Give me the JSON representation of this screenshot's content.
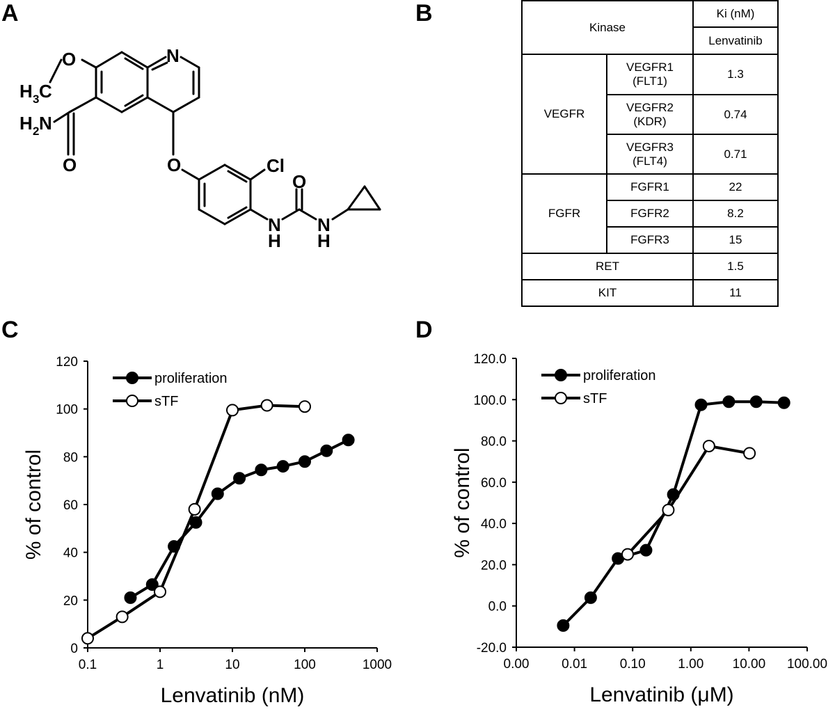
{
  "panels": {
    "a": "A",
    "b": "B",
    "c": "C",
    "d": "D"
  },
  "molecule": {
    "atoms": {
      "methyl_h": "H",
      "methyl_sub": "3",
      "methyl_c": "C",
      "ether_o": "O",
      "ring_n": "N",
      "amide_h": "H",
      "amide_sub": "2",
      "amide_n": "N",
      "carbonyl_o1": "O",
      "aryl_ether_o": "O",
      "chlorine": "Cl",
      "urea_o": "O",
      "nh1_n": "N",
      "nh1_h": "H",
      "nh2_n": "N",
      "nh2_h": "H"
    }
  },
  "table": {
    "header": {
      "kinase": "Kinase",
      "ki": "Ki (nM)",
      "drug": "Lenvatinib"
    },
    "groups": [
      {
        "name": "VEGFR",
        "rows": [
          {
            "line1": "VEGFR1",
            "line2": "(FLT1)",
            "value": "1.3"
          },
          {
            "line1": "VEGFR2",
            "line2": "(KDR)",
            "value": "0.74"
          },
          {
            "line1": "VEGFR3",
            "line2": "(FLT4)",
            "value": "0.71"
          }
        ]
      },
      {
        "name": "FGFR",
        "rows": [
          {
            "line1": "FGFR1",
            "value": "22"
          },
          {
            "line1": "FGFR2",
            "value": "8.2"
          },
          {
            "line1": "FGFR3",
            "value": "15"
          }
        ]
      }
    ],
    "single_rows": [
      {
        "name": "RET",
        "value": "1.5"
      },
      {
        "name": "KIT",
        "value": "11"
      }
    ]
  },
  "chart_data": [
    {
      "panel": "C",
      "type": "line",
      "xscale": "log",
      "xlabel": "Lenvatinib (nM)",
      "ylabel": "% of control",
      "xlim": [
        0.1,
        1000
      ],
      "ylim": [
        0,
        120
      ],
      "xticks": [
        "0.1",
        "1",
        "10",
        "100",
        "1000"
      ],
      "yticks": [
        "0",
        "20",
        "40",
        "60",
        "80",
        "100",
        "120"
      ],
      "legend": "top-left",
      "series": [
        {
          "name": "proliferation",
          "marker": "filled",
          "x": [
            0.39,
            0.78,
            1.56,
            3.13,
            6.25,
            12.5,
            25,
            50,
            100,
            200,
            400
          ],
          "y": [
            21,
            26.5,
            42.5,
            52.5,
            64.5,
            71,
            74.5,
            76,
            78,
            82.5,
            87
          ]
        },
        {
          "name": "sTF",
          "marker": "open",
          "x": [
            0.1,
            0.3,
            1,
            3,
            10,
            30,
            100
          ],
          "y": [
            4,
            13,
            23.5,
            58,
            99.5,
            101.5,
            101
          ]
        }
      ]
    },
    {
      "panel": "D",
      "type": "line",
      "xscale": "log",
      "xlabel": "Lenvatinib (μM)",
      "ylabel": "% of control",
      "xlim": [
        0.001,
        100
      ],
      "ylim": [
        -20,
        120
      ],
      "xticks": [
        "0.00",
        "0.01",
        "0.10",
        "1.00",
        "10.00",
        "100.00"
      ],
      "yticks": [
        "-20.0",
        "0.0",
        "20.0",
        "40.0",
        "60.0",
        "80.0",
        "100.0",
        "120.0"
      ],
      "legend": "top-left",
      "series": [
        {
          "name": "proliferation",
          "marker": "filled",
          "x": [
            0.0064,
            0.019,
            0.056,
            0.17,
            0.5,
            1.5,
            4.5,
            13.3,
            40
          ],
          "y": [
            -9.5,
            4,
            23,
            27,
            54,
            97.5,
            99,
            99,
            98.5
          ]
        },
        {
          "name": "sTF",
          "marker": "open",
          "x": [
            0.082,
            0.41,
            2.05,
            10.2
          ],
          "y": [
            25,
            46.5,
            77.5,
            74
          ]
        }
      ]
    }
  ]
}
